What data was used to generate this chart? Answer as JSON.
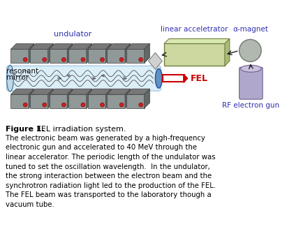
{
  "figsize": [
    4.11,
    3.35
  ],
  "dpi": 100,
  "bg_color": "#ffffff",
  "label_undulator": "undulator",
  "label_linear_accel": "linear acceletrator",
  "label_alpha_magnet": "α-magnet",
  "label_resonant": "resonant",
  "label_mirror": "mirror",
  "label_FEL": "FEL",
  "label_RF": "RF electron gun",
  "label_color_blue": "#3030b0",
  "label_color_red": "#cc0000",
  "caption_bold": "Figure 1.",
  "caption_normal": " FEL irradiation system.",
  "body_text": "The electronic beam was generated by a high-frequency\nelectronic gun and accelerated to 40 MeV through the\nlinear accelerator. The periodic length of the undulator was\ntuned to set the oscillation wavelength.  In the undulator,\nthe strong interaction between the electron beam and the\nsynchrotron radiation light led to the production of the FEL.\nThe FEL beam was transported to the laboratory though a\nvacuum tube.",
  "accel_color": "#ccd8a0",
  "accel_top_color": "#d8e8b0",
  "accel_right_color": "#a8bc78",
  "accel_edge": "#708040",
  "alpha_magnet_color": "#b0b8b0",
  "alpha_magnet_edge": "#707870",
  "rf_gun_body_color": "#b0a8cc",
  "rf_gun_top_color": "#c8c0dc",
  "rf_gun_edge": "#706090",
  "beam_tube_color": "#d8eef8",
  "beam_tube_edge": "#90b8d8",
  "mirror_left_color": "#c0d8e8",
  "mirror_right_color": "#6090c0",
  "magnet_face_color": "#909898",
  "magnet_side_color": "#606868",
  "magnet_top_color": "#787878",
  "magnet_edge": "#404040",
  "magnet_red": "#cc2020",
  "coupler_color": "#d0d0d0",
  "arrow_color": "#202020",
  "wave_color": "#505050"
}
